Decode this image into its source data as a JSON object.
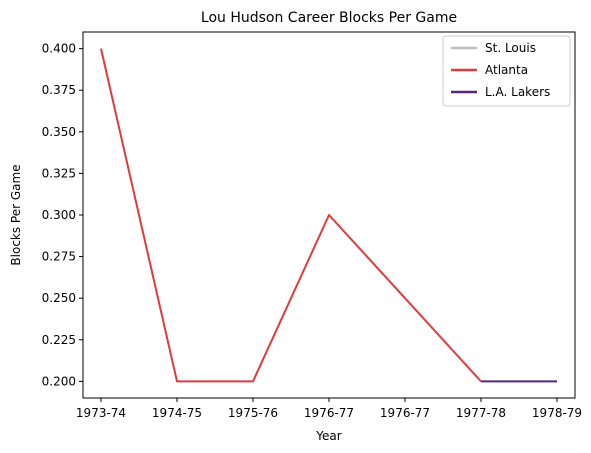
{
  "chart_data": {
    "type": "line",
    "title": "Lou Hudson Career Blocks Per Game",
    "xlabel": "Year",
    "ylabel": "Blocks Per Game",
    "x_tick_labels": [
      "1973-74",
      "1974-75",
      "1975-76",
      "1976-77",
      "1976-77",
      "1977-78",
      "1978-79"
    ],
    "ylim": [
      0.19,
      0.41
    ],
    "y_ticks": [
      "0.200",
      "0.225",
      "0.250",
      "0.275",
      "0.300",
      "0.325",
      "0.350",
      "0.375",
      "0.400"
    ],
    "grid": false,
    "legend_position": "top-right",
    "series": [
      {
        "name": "St. Louis",
        "color": "#c0c0c0",
        "points": []
      },
      {
        "name": "Atlanta",
        "color": "#e03a3e",
        "points": [
          {
            "x": "1973-74",
            "y": 0.4
          },
          {
            "x": "1974-75",
            "y": 0.2
          },
          {
            "x": "1975-76",
            "y": 0.2
          },
          {
            "x": "1976-77",
            "y": 0.3
          },
          {
            "x": "1977-78",
            "y": 0.2
          }
        ]
      },
      {
        "name": "L.A. Lakers",
        "color": "#552583",
        "points": [
          {
            "x": "1977-78",
            "y": 0.2
          },
          {
            "x": "1978-79",
            "y": 0.2
          }
        ]
      }
    ]
  }
}
